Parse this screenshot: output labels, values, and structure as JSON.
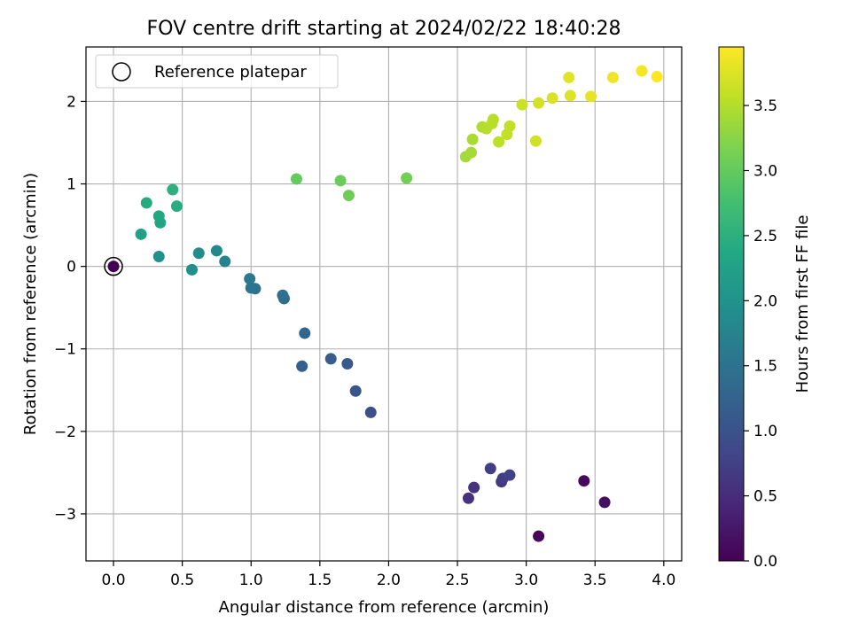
{
  "chart_data": {
    "type": "scatter",
    "title": "FOV centre drift starting at 2024/02/22 18:40:28",
    "xlabel": "Angular distance from reference (arcmin)",
    "ylabel": "Rotation from reference (arcmin)",
    "colorbar_label": "Hours from first FF file",
    "xlim": [
      -0.2,
      4.13
    ],
    "ylim": [
      -3.57,
      2.66
    ],
    "clim": [
      0.0,
      3.95
    ],
    "colormap": "viridis",
    "grid": true,
    "legend_position": "top-left",
    "x_ticks": [
      0.0,
      0.5,
      1.0,
      1.5,
      2.0,
      2.5,
      3.0,
      3.5,
      4.0
    ],
    "x_tick_labels": [
      "0.0",
      "0.5",
      "1.0",
      "1.5",
      "2.0",
      "2.5",
      "3.0",
      "3.5",
      "4.0"
    ],
    "y_ticks": [
      -3,
      -2,
      -1,
      0,
      1,
      2
    ],
    "y_tick_labels": [
      "−3",
      "−2",
      "−1",
      "0",
      "1",
      "2"
    ],
    "colorbar_ticks": [
      0.0,
      0.5,
      1.0,
      1.5,
      2.0,
      2.5,
      3.0,
      3.5
    ],
    "colorbar_tick_labels": [
      "0.0",
      "0.5",
      "1.0",
      "1.5",
      "2.0",
      "2.5",
      "3.0",
      "3.5"
    ],
    "reference": {
      "label": "Reference platepar",
      "x": 0.0,
      "y": 0.0
    },
    "points": [
      {
        "x": 0.0,
        "y": 0.0,
        "c": 0.0
      },
      {
        "x": 3.09,
        "y": -3.27,
        "c": 0.05
      },
      {
        "x": 3.42,
        "y": -2.6,
        "c": 0.1
      },
      {
        "x": 3.57,
        "y": -2.86,
        "c": 0.15
      },
      {
        "x": 2.58,
        "y": -2.81,
        "c": 0.55
      },
      {
        "x": 2.62,
        "y": -2.68,
        "c": 0.6
      },
      {
        "x": 2.74,
        "y": -2.45,
        "c": 0.7
      },
      {
        "x": 2.82,
        "y": -2.61,
        "c": 0.65
      },
      {
        "x": 2.83,
        "y": -2.57,
        "c": 0.72
      },
      {
        "x": 2.88,
        "y": -2.53,
        "c": 0.75
      },
      {
        "x": 1.87,
        "y": -1.77,
        "c": 0.95
      },
      {
        "x": 1.76,
        "y": -1.51,
        "c": 1.05
      },
      {
        "x": 1.7,
        "y": -1.18,
        "c": 1.1
      },
      {
        "x": 1.58,
        "y": -1.12,
        "c": 1.15
      },
      {
        "x": 1.37,
        "y": -1.21,
        "c": 1.2
      },
      {
        "x": 1.39,
        "y": -0.81,
        "c": 1.3
      },
      {
        "x": 1.24,
        "y": -0.39,
        "c": 1.4
      },
      {
        "x": 1.23,
        "y": -0.35,
        "c": 1.45
      },
      {
        "x": 1.03,
        "y": -0.27,
        "c": 1.5
      },
      {
        "x": 1.0,
        "y": -0.26,
        "c": 1.55
      },
      {
        "x": 0.99,
        "y": -0.15,
        "c": 1.6
      },
      {
        "x": 0.81,
        "y": 0.06,
        "c": 1.75
      },
      {
        "x": 0.75,
        "y": 0.19,
        "c": 1.85
      },
      {
        "x": 0.62,
        "y": 0.16,
        "c": 1.9
      },
      {
        "x": 0.57,
        "y": -0.04,
        "c": 1.95
      },
      {
        "x": 0.33,
        "y": 0.12,
        "c": 2.0
      },
      {
        "x": 0.2,
        "y": 0.39,
        "c": 2.25
      },
      {
        "x": 0.34,
        "y": 0.53,
        "c": 2.3
      },
      {
        "x": 0.33,
        "y": 0.61,
        "c": 2.35
      },
      {
        "x": 0.24,
        "y": 0.77,
        "c": 2.4
      },
      {
        "x": 0.46,
        "y": 0.73,
        "c": 2.45
      },
      {
        "x": 0.43,
        "y": 0.93,
        "c": 2.5
      },
      {
        "x": 1.33,
        "y": 1.06,
        "c": 3.0
      },
      {
        "x": 1.65,
        "y": 1.04,
        "c": 3.05
      },
      {
        "x": 1.71,
        "y": 0.86,
        "c": 3.08
      },
      {
        "x": 2.13,
        "y": 1.07,
        "c": 3.1
      },
      {
        "x": 2.56,
        "y": 1.33,
        "c": 3.4
      },
      {
        "x": 2.6,
        "y": 1.38,
        "c": 3.42
      },
      {
        "x": 2.61,
        "y": 1.54,
        "c": 3.45
      },
      {
        "x": 2.68,
        "y": 1.69,
        "c": 3.48
      },
      {
        "x": 2.71,
        "y": 1.67,
        "c": 3.5
      },
      {
        "x": 2.75,
        "y": 1.73,
        "c": 3.52
      },
      {
        "x": 2.76,
        "y": 1.78,
        "c": 3.53
      },
      {
        "x": 2.8,
        "y": 1.51,
        "c": 3.55
      },
      {
        "x": 2.86,
        "y": 1.6,
        "c": 3.58
      },
      {
        "x": 2.88,
        "y": 1.7,
        "c": 3.6
      },
      {
        "x": 2.97,
        "y": 1.96,
        "c": 3.65
      },
      {
        "x": 3.07,
        "y": 1.52,
        "c": 3.67
      },
      {
        "x": 3.09,
        "y": 1.98,
        "c": 3.7
      },
      {
        "x": 3.19,
        "y": 2.04,
        "c": 3.72
      },
      {
        "x": 3.32,
        "y": 2.07,
        "c": 3.75
      },
      {
        "x": 3.31,
        "y": 2.29,
        "c": 3.78
      },
      {
        "x": 3.47,
        "y": 2.06,
        "c": 3.8
      },
      {
        "x": 3.63,
        "y": 2.29,
        "c": 3.85
      },
      {
        "x": 3.84,
        "y": 2.37,
        "c": 3.9
      },
      {
        "x": 3.95,
        "y": 2.3,
        "c": 3.95
      }
    ]
  }
}
